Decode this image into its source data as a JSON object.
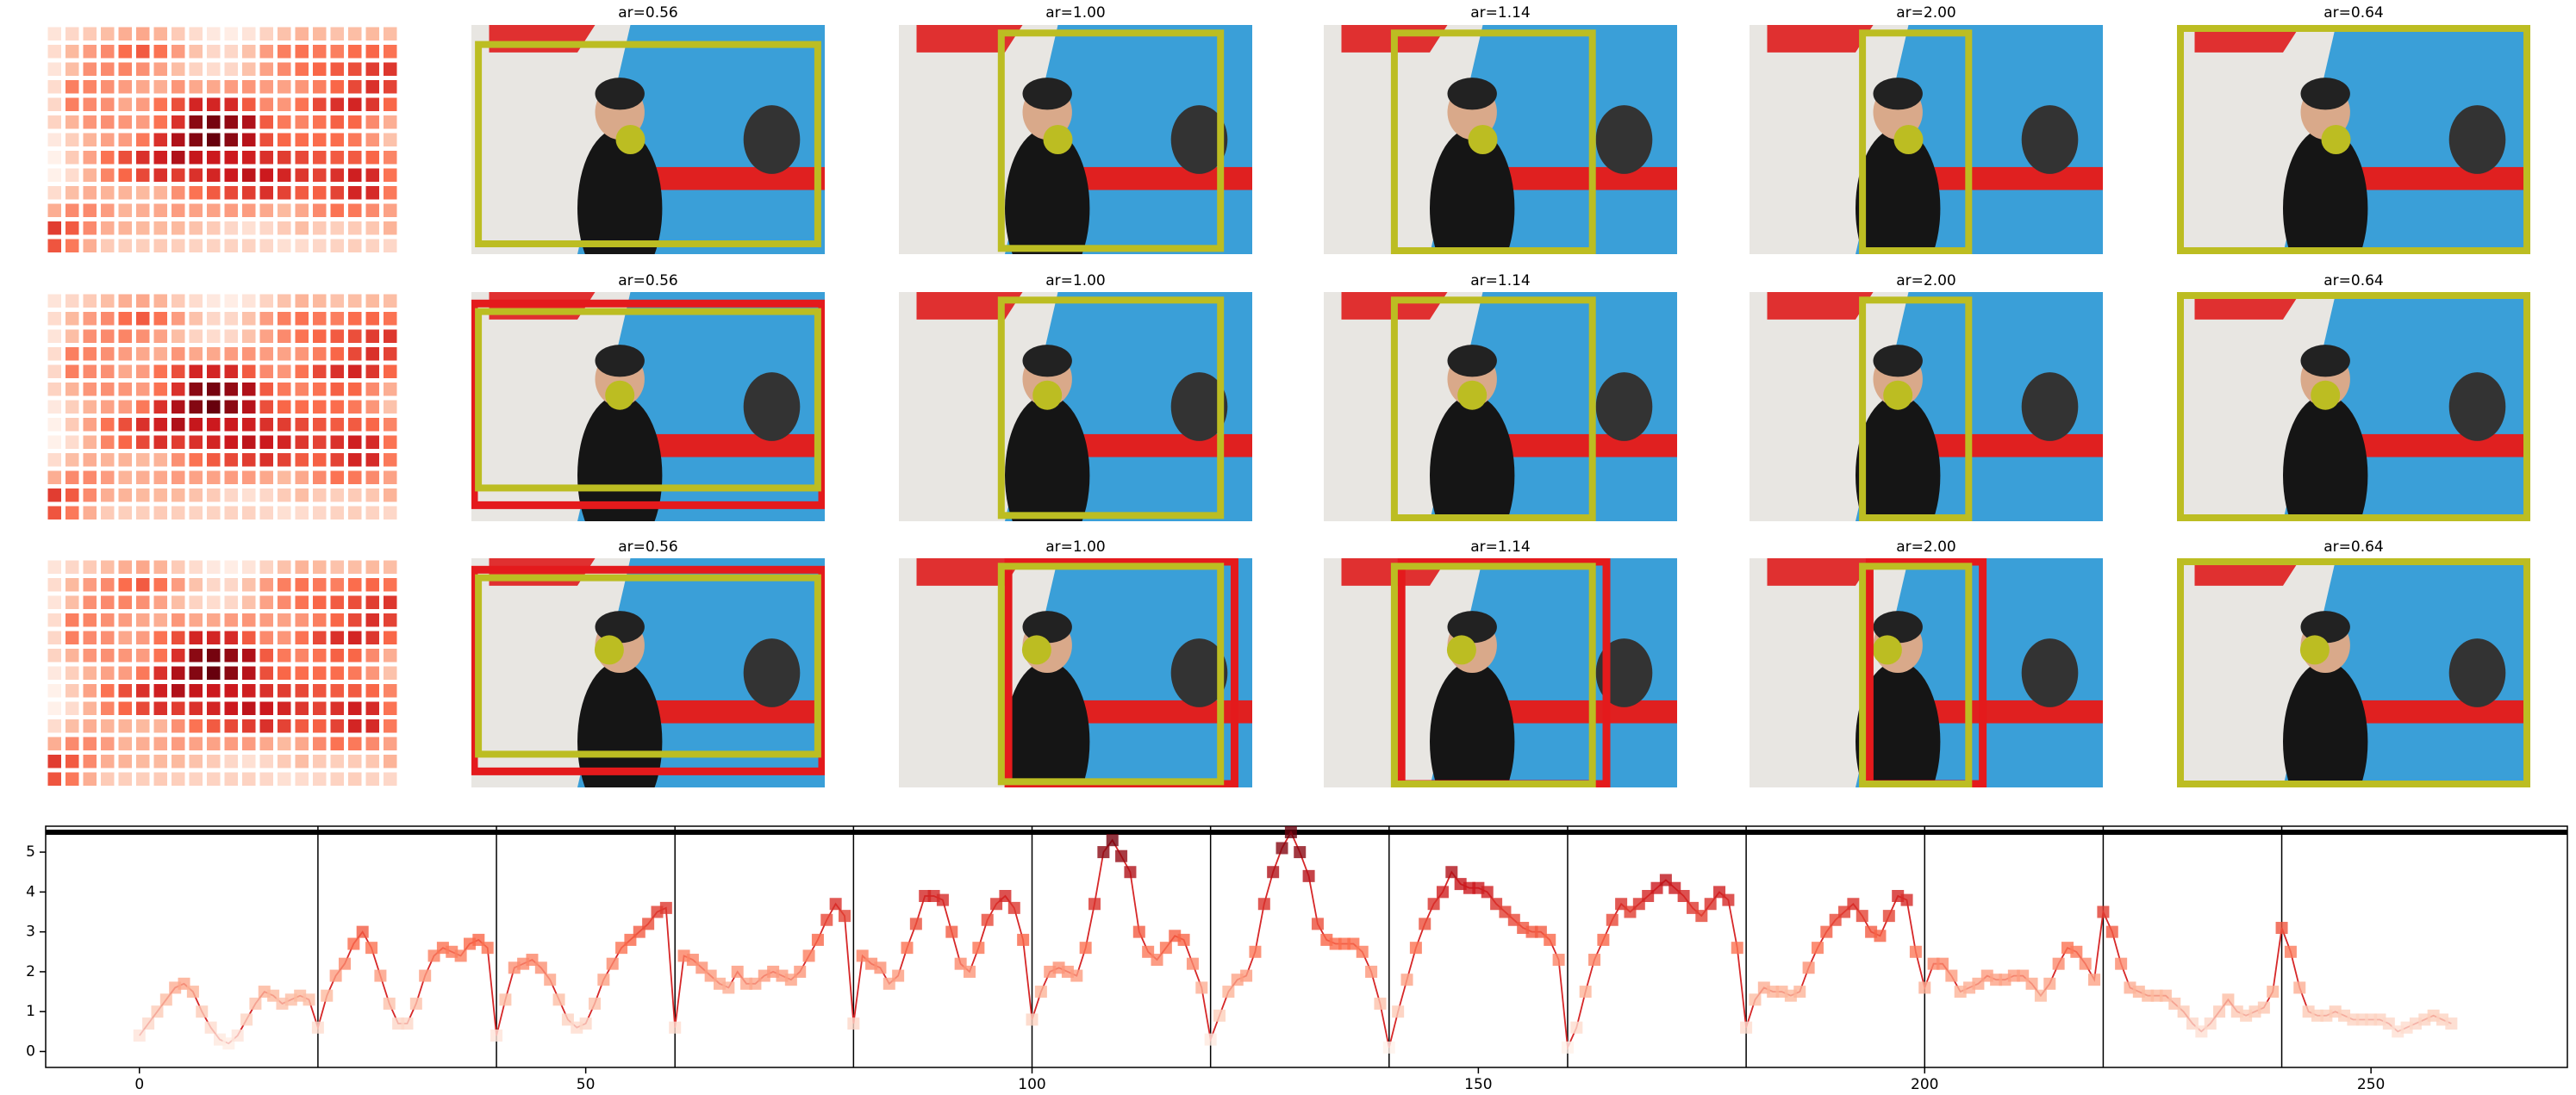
{
  "rows": [
    {
      "titles": [
        "ar=0.56",
        "ar=1.00",
        "ar=1.14",
        "ar=2.00",
        "ar=0.64"
      ]
    },
    {
      "titles": [
        "ar=0.56",
        "ar=1.00",
        "ar=1.14",
        "ar=2.00",
        "ar=0.64"
      ]
    },
    {
      "titles": [
        "ar=0.56",
        "ar=1.00",
        "ar=1.14",
        "ar=2.00",
        "ar=0.64"
      ]
    }
  ],
  "chart_data": {
    "type": "line",
    "x": [
      0,
      1,
      2,
      3,
      4,
      5,
      6,
      7,
      8,
      9,
      10,
      11,
      12,
      13,
      14,
      15,
      16,
      17,
      18,
      19,
      20,
      21,
      22,
      23,
      24,
      25,
      26,
      27,
      28,
      29,
      30,
      31,
      32,
      33,
      34,
      35,
      36,
      37,
      38,
      39,
      40,
      41,
      42,
      43,
      44,
      45,
      46,
      47,
      48,
      49,
      50,
      51,
      52,
      53,
      54,
      55,
      56,
      57,
      58,
      59,
      60,
      61,
      62,
      63,
      64,
      65,
      66,
      67,
      68,
      69,
      70,
      71,
      72,
      73,
      74,
      75,
      76,
      77,
      78,
      79,
      80,
      81,
      82,
      83,
      84,
      85,
      86,
      87,
      88,
      89,
      90,
      91,
      92,
      93,
      94,
      95,
      96,
      97,
      98,
      99,
      100,
      101,
      102,
      103,
      104,
      105,
      106,
      107,
      108,
      109,
      110,
      111,
      112,
      113,
      114,
      115,
      116,
      117,
      118,
      119,
      120,
      121,
      122,
      123,
      124,
      125,
      126,
      127,
      128,
      129,
      130,
      131,
      132,
      133,
      134,
      135,
      136,
      137,
      138,
      139,
      140,
      141,
      142,
      143,
      144,
      145,
      146,
      147,
      148,
      149,
      150,
      151,
      152,
      153,
      154,
      155,
      156,
      157,
      158,
      159,
      160,
      161,
      162,
      163,
      164,
      165,
      166,
      167,
      168,
      169,
      170,
      171,
      172,
      173,
      174,
      175,
      176,
      177,
      178,
      179,
      180,
      181,
      182,
      183,
      184,
      185,
      186,
      187,
      188,
      189,
      190,
      191,
      192,
      193,
      194,
      195,
      196,
      197,
      198,
      199,
      200,
      201,
      202,
      203,
      204,
      205,
      206,
      207,
      208,
      209,
      210,
      211,
      212,
      213,
      214,
      215,
      216,
      217,
      218,
      219,
      220,
      221,
      222,
      223,
      224,
      225,
      226,
      227,
      228,
      229,
      230,
      231,
      232,
      233,
      234,
      235,
      236,
      237,
      238,
      239,
      240,
      241,
      242,
      243,
      244,
      245,
      246,
      247,
      248,
      249,
      250,
      251,
      252,
      253,
      254,
      255,
      256,
      257,
      258,
      259
    ],
    "values": [
      0.4,
      0.7,
      1.0,
      1.3,
      1.6,
      1.7,
      1.5,
      1.0,
      0.6,
      0.3,
      0.2,
      0.4,
      0.8,
      1.2,
      1.5,
      1.4,
      1.2,
      1.3,
      1.4,
      1.3,
      0.6,
      1.4,
      1.9,
      2.2,
      2.7,
      3.0,
      2.6,
      1.9,
      1.2,
      0.7,
      0.7,
      1.2,
      1.9,
      2.4,
      2.6,
      2.5,
      2.4,
      2.7,
      2.8,
      2.6,
      0.4,
      1.3,
      2.1,
      2.2,
      2.3,
      2.1,
      1.8,
      1.3,
      0.8,
      0.6,
      0.7,
      1.2,
      1.8,
      2.2,
      2.6,
      2.8,
      3.0,
      3.2,
      3.5,
      3.6,
      0.6,
      2.4,
      2.3,
      2.1,
      1.9,
      1.7,
      1.6,
      2.0,
      1.7,
      1.7,
      1.9,
      2.0,
      1.9,
      1.8,
      2.0,
      2.4,
      2.8,
      3.3,
      3.7,
      3.4,
      0.7,
      2.4,
      2.2,
      2.1,
      1.7,
      1.9,
      2.6,
      3.2,
      3.9,
      3.9,
      3.8,
      3.0,
      2.2,
      2.0,
      2.6,
      3.3,
      3.7,
      3.9,
      3.6,
      2.8,
      0.8,
      1.5,
      2.0,
      2.1,
      2.0,
      1.9,
      2.6,
      3.7,
      5.0,
      5.3,
      4.9,
      4.5,
      3.0,
      2.5,
      2.3,
      2.6,
      2.9,
      2.8,
      2.2,
      1.6,
      0.3,
      0.9,
      1.5,
      1.8,
      1.9,
      2.5,
      3.7,
      4.5,
      5.1,
      5.5,
      5.0,
      4.4,
      3.2,
      2.8,
      2.7,
      2.7,
      2.7,
      2.5,
      2.0,
      1.2,
      0.1,
      1.0,
      1.8,
      2.6,
      3.2,
      3.7,
      4.0,
      4.5,
      4.2,
      4.1,
      4.1,
      4.0,
      3.7,
      3.5,
      3.3,
      3.1,
      3.0,
      3.0,
      2.8,
      2.3,
      0.1,
      0.6,
      1.5,
      2.3,
      2.8,
      3.3,
      3.7,
      3.5,
      3.7,
      3.9,
      4.1,
      4.3,
      4.1,
      3.9,
      3.6,
      3.4,
      3.7,
      4.0,
      3.8,
      2.6,
      0.6,
      1.3,
      1.6,
      1.5,
      1.5,
      1.4,
      1.5,
      2.1,
      2.6,
      3.0,
      3.3,
      3.5,
      3.7,
      3.4,
      3.0,
      2.9,
      3.4,
      3.9,
      3.8,
      2.5,
      1.6,
      2.2,
      2.2,
      1.9,
      1.5,
      1.6,
      1.7,
      1.9,
      1.8,
      1.8,
      1.9,
      1.9,
      1.7,
      1.4,
      1.7,
      2.2,
      2.6,
      2.5,
      2.2,
      1.8,
      3.5,
      3.0,
      2.2,
      1.6,
      1.5,
      1.4,
      1.4,
      1.4,
      1.2,
      1.0,
      0.7,
      0.5,
      0.7,
      1.0,
      1.3,
      1.0,
      0.9,
      1.0,
      1.1,
      1.5,
      3.1,
      2.5,
      1.6,
      1.0,
      0.9,
      0.9,
      1.0,
      0.9,
      0.8,
      0.8,
      0.8,
      0.8,
      0.7,
      0.5,
      0.6,
      0.7,
      0.8,
      0.9,
      0.8,
      0.7
    ],
    "color": "#d62728",
    "xlim": [
      -10.5,
      272
    ],
    "ylim": [
      -0.4,
      5.65
    ],
    "xticks": [
      0,
      50,
      100,
      150,
      200,
      250
    ],
    "yticks": [
      0,
      1,
      2,
      3,
      4,
      5
    ],
    "vlines": [
      20,
      40,
      60,
      80,
      100,
      120,
      140,
      160,
      180,
      200,
      220,
      240
    ],
    "hline": 5.5
  }
}
